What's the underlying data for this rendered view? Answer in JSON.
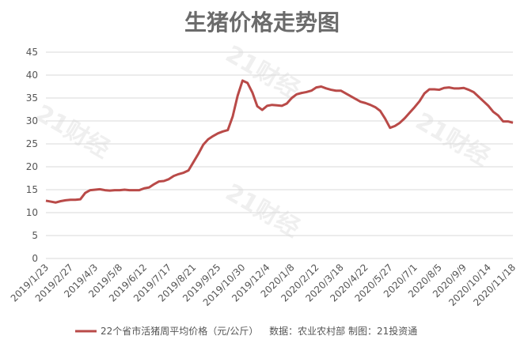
{
  "chart_data": {
    "type": "line",
    "title": "生猪价格走势图",
    "watermark": "21财经",
    "categories": [
      "2019/1/23",
      null,
      null,
      null,
      null,
      "2019/2/27",
      null,
      null,
      null,
      null,
      "2019/4/3",
      null,
      null,
      null,
      null,
      "2019/5/8",
      null,
      null,
      null,
      null,
      "2019/6/12",
      null,
      null,
      null,
      null,
      "2019/7/17",
      null,
      null,
      null,
      null,
      "2019/8/21",
      null,
      null,
      null,
      null,
      "2019/9/25",
      null,
      null,
      null,
      null,
      "2019/10/30",
      null,
      null,
      null,
      null,
      "2019/12/4",
      null,
      null,
      null,
      null,
      "2020/1/8",
      null,
      null,
      null,
      null,
      "2020/2/12",
      null,
      null,
      null,
      null,
      "2020/3/18",
      null,
      null,
      null,
      null,
      "2020/4/22",
      null,
      null,
      null,
      null,
      "2020/5/27",
      null,
      null,
      null,
      null,
      "2020/7/1",
      null,
      null,
      null,
      null,
      "2020/8/5",
      null,
      null,
      null,
      null,
      "2020/9/9",
      null,
      null,
      null,
      null,
      "2020/10/14",
      null,
      null,
      null,
      null,
      "2020/11/18"
    ],
    "series": [
      {
        "name": "22个省市活猪周平均价格（元/公斤）",
        "color": "#b94a48",
        "values": [
          12.6,
          12.4,
          12.2,
          12.5,
          12.7,
          12.8,
          12.8,
          12.9,
          14.3,
          14.9,
          15.0,
          15.1,
          14.9,
          14.8,
          14.9,
          14.9,
          15.0,
          14.9,
          14.9,
          14.9,
          15.3,
          15.5,
          16.2,
          16.8,
          16.9,
          17.3,
          18.0,
          18.4,
          18.7,
          19.2,
          21.0,
          22.8,
          24.8,
          26.0,
          26.7,
          27.3,
          27.7,
          28.0,
          31.0,
          35.5,
          38.8,
          38.3,
          36.2,
          33.2,
          32.4,
          33.3,
          33.5,
          33.4,
          33.3,
          33.8,
          35.0,
          35.8,
          36.1,
          36.3,
          36.6,
          37.3,
          37.5,
          37.1,
          36.8,
          36.6,
          36.6,
          36.0,
          35.4,
          34.8,
          34.2,
          33.9,
          33.5,
          33.0,
          32.2,
          30.5,
          28.5,
          28.9,
          29.6,
          30.6,
          31.8,
          33.0,
          34.3,
          36.0,
          36.9,
          36.9,
          36.8,
          37.2,
          37.3,
          37.1,
          37.1,
          37.2,
          36.8,
          36.3,
          35.3,
          34.3,
          33.3,
          32.0,
          31.2,
          29.9,
          29.9,
          29.6
        ]
      }
    ],
    "source": "数据：农业农村部  制图：21投资通",
    "ylim": [
      0,
      45
    ],
    "yticks": [
      0,
      5,
      10,
      15,
      20,
      25,
      30,
      35,
      40,
      45
    ],
    "grid": true
  }
}
